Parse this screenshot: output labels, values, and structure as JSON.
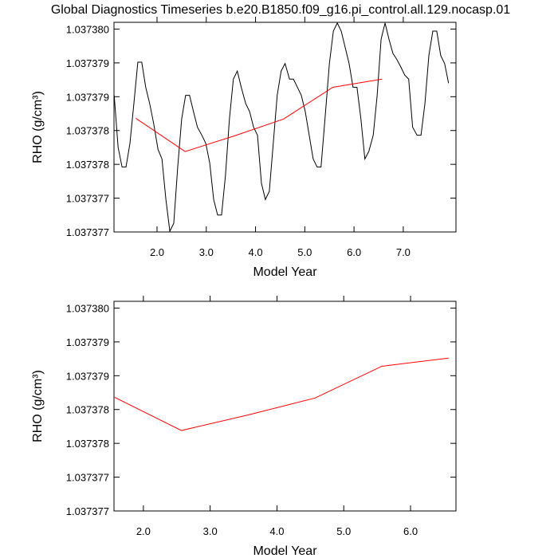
{
  "chart_data": [
    {
      "type": "line",
      "title": "Global Diagnostics Timeseries b.e20.B1850.f09_g16.pi_control.all.129.nocasp.01",
      "xlabel": "Model Year",
      "ylabel": "RHO (g/cm³)",
      "xlim": [
        1.126,
        8.07
      ],
      "ylim": [
        1.037377,
        1.0373801
      ],
      "xticks": [
        {
          "value": 2,
          "label": "2.0"
        },
        {
          "value": 3,
          "label": "3.0"
        },
        {
          "value": 4,
          "label": "4.0"
        },
        {
          "value": 5,
          "label": "5.0"
        },
        {
          "value": 6,
          "label": "6.0"
        },
        {
          "value": 7,
          "label": "7.0"
        }
      ],
      "yticks": [
        1.037377,
        {
          "value": 1.0373775,
          "label": "1.037377"
        },
        1.037378,
        {
          "value": 1.0373785,
          "label": "1.037378"
        },
        1.037379,
        {
          "value": 1.0373795,
          "label": "1.037379"
        },
        {
          "value": 1.03738,
          "label": "1.037380"
        }
      ],
      "series": [
        {
          "color": "#000000",
          "x": [
            1.13,
            1.21,
            1.29,
            1.37,
            1.45,
            1.53,
            1.61,
            1.69,
            1.77,
            1.85,
            1.93,
            2.02,
            2.1,
            2.18,
            2.26,
            2.34,
            2.42,
            2.5,
            2.58,
            2.66,
            2.74,
            2.82,
            2.91,
            2.99,
            3.07,
            3.15,
            3.23,
            3.31,
            3.39,
            3.47,
            3.55,
            3.63,
            3.71,
            3.8,
            3.88,
            3.96,
            4.04,
            4.12,
            4.2,
            4.28,
            4.36,
            4.44,
            4.52,
            4.6,
            4.69,
            4.77,
            4.85,
            4.93,
            5.01,
            5.09,
            5.17,
            5.25,
            5.33,
            5.41,
            5.5,
            5.58,
            5.66,
            5.74,
            5.82,
            5.9,
            5.98,
            6.06,
            6.14,
            6.22,
            6.3,
            6.39,
            6.47,
            6.55,
            6.63,
            6.71,
            6.79,
            6.87,
            6.95,
            7.03,
            7.11,
            7.19,
            7.28,
            7.36,
            7.44,
            7.52,
            7.6,
            7.68,
            7.76,
            7.84,
            7.92
          ],
          "values": [
            1.03737902,
            1.03737825,
            1.03737796,
            1.03737796,
            1.03737831,
            1.0373789,
            1.03737951,
            1.03737951,
            1.03737914,
            1.0373789,
            1.03737861,
            1.03737822,
            1.03737808,
            1.03737748,
            1.03737701,
            1.03737713,
            1.03737796,
            1.03737867,
            1.03737902,
            1.03737902,
            1.03737878,
            1.03737855,
            1.03737843,
            1.03737831,
            1.03737802,
            1.03737748,
            1.03737725,
            1.03737725,
            1.03737784,
            1.03737867,
            1.03737926,
            1.03737938,
            1.03737914,
            1.0373789,
            1.03737878,
            1.03737855,
            1.03737843,
            1.03737772,
            1.03737748,
            1.0373776,
            1.03737831,
            1.03737902,
            1.03737938,
            1.03737949,
            1.03737926,
            1.03737926,
            1.03737914,
            1.03737902,
            1.03737878,
            1.03737843,
            1.03737808,
            1.03737796,
            1.03737796,
            1.03737867,
            1.03737949,
            1.03737997,
            1.03738009,
            1.03737997,
            1.03737973,
            1.03737949,
            1.03737914,
            1.03737914,
            1.03737867,
            1.03737808,
            1.03737819,
            1.03737843,
            1.03737902,
            1.03737985,
            1.03738009,
            1.03737985,
            1.03737964,
            1.03737955,
            1.03737944,
            1.03737932,
            1.03737926,
            1.03737855,
            1.03737843,
            1.03737843,
            1.0373789,
            1.03737961,
            1.03737997,
            1.03737997,
            1.03737961,
            1.03737949,
            1.0373792
          ]
        },
        {
          "color": "#ff0000",
          "x": [
            1.57,
            2.57,
            3.57,
            4.57,
            5.57,
            6.57
          ],
          "values": [
            1.03737868,
            1.03737819,
            1.03737842,
            1.03737867,
            1.03737914,
            1.03737926
          ]
        }
      ]
    },
    {
      "type": "line",
      "xlabel": "Model Year",
      "ylabel": "RHO (g/cm³)",
      "xlim": [
        1.56,
        6.68
      ],
      "ylim": [
        1.037377,
        1.0373801
      ],
      "xticks": [
        {
          "value": 2,
          "label": "2.0"
        },
        {
          "value": 3,
          "label": "3.0"
        },
        {
          "value": 4,
          "label": "4.0"
        },
        {
          "value": 5,
          "label": "5.0"
        },
        {
          "value": 6,
          "label": "6.0"
        }
      ],
      "yticks": [
        1.037377,
        {
          "value": 1.0373775,
          "label": "1.037377"
        },
        1.037378,
        {
          "value": 1.0373785,
          "label": "1.037378"
        },
        1.037379,
        {
          "value": 1.0373795,
          "label": "1.037379"
        },
        {
          "value": 1.03738,
          "label": "1.037380"
        }
      ],
      "series": [
        {
          "color": "#ff0000",
          "x": [
            1.57,
            2.57,
            3.57,
            4.57,
            5.57,
            6.57
          ],
          "values": [
            1.03737868,
            1.03737819,
            1.03737842,
            1.03737867,
            1.03737914,
            1.03737926
          ]
        }
      ]
    }
  ]
}
